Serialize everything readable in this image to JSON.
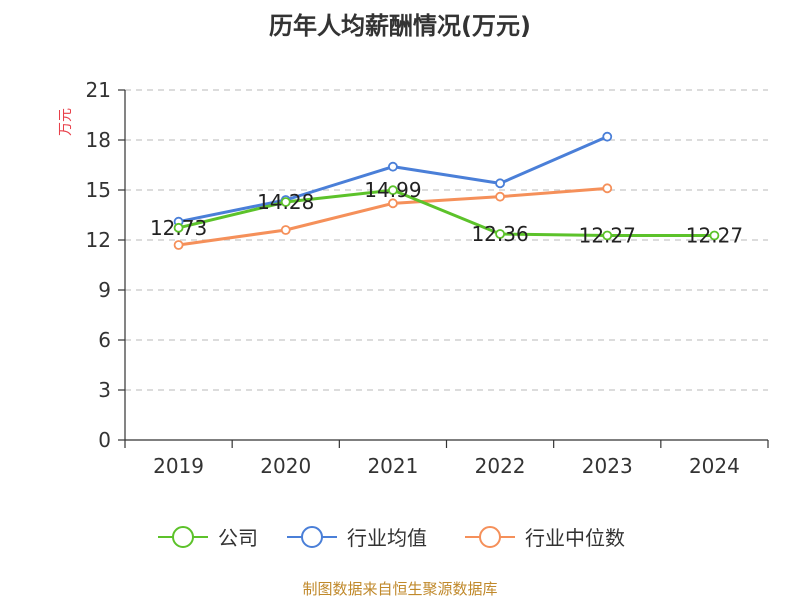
{
  "chart_data": {
    "type": "line",
    "title": "历年人均薪酬情况(万元)",
    "ylabel": "万元",
    "xlabel": "",
    "categories": [
      "2019",
      "2020",
      "2021",
      "2022",
      "2023",
      "2024"
    ],
    "ylim": [
      0,
      21
    ],
    "yticks": [
      0,
      3,
      6,
      9,
      12,
      15,
      18,
      21
    ],
    "grid": true,
    "legend_position": "bottom",
    "series": [
      {
        "name": "公司",
        "color": "#5cc22a",
        "values": [
          12.73,
          14.28,
          14.99,
          12.36,
          12.27,
          12.27
        ],
        "labels": [
          "12.73",
          "14.28",
          "14.99",
          "12.36",
          "12.27",
          "12.27"
        ]
      },
      {
        "name": "行业均值",
        "color": "#4a7fd8",
        "values": [
          13.1,
          14.4,
          16.4,
          15.4,
          18.2,
          null
        ]
      },
      {
        "name": "行业中位数",
        "color": "#f5905a",
        "values": [
          11.7,
          12.6,
          14.2,
          14.6,
          15.1,
          null
        ]
      }
    ],
    "source": "制图数据来自恒生聚源数据库"
  }
}
